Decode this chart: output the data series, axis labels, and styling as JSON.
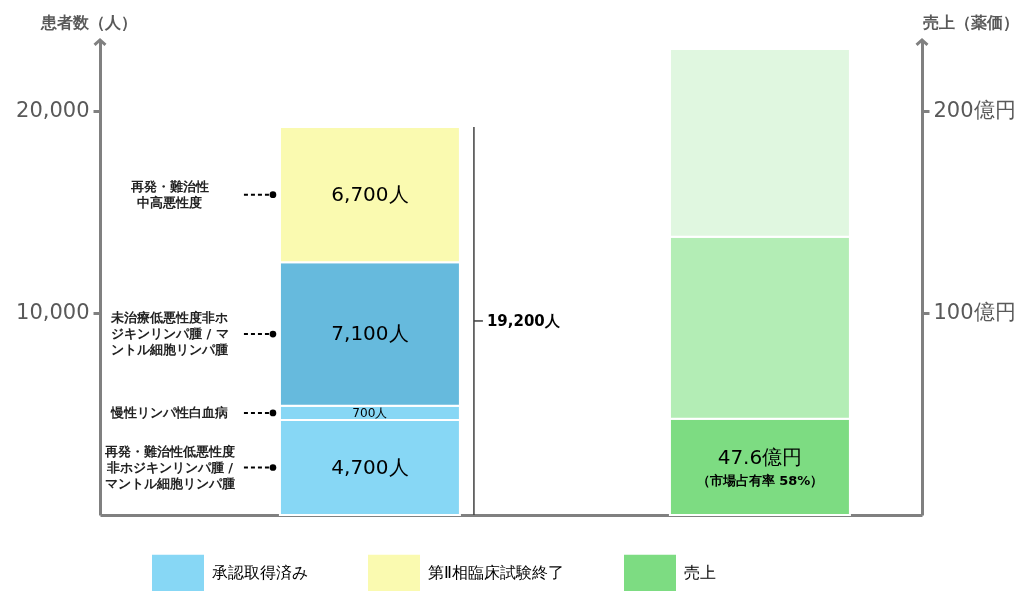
{
  "chart_data": {
    "type": "bar",
    "stacked": true,
    "categories": [
      null,
      null
    ],
    "ylabel": "患者数（人）",
    "y2label": "売上（薬価）",
    "ylim": [
      0,
      23500
    ],
    "yticks": [
      {
        "value": 10000,
        "label": "10,000"
      },
      {
        "value": 20000,
        "label": "20,000"
      }
    ],
    "y2lim": [
      0,
      235
    ],
    "y2ticks": [
      {
        "value": 100,
        "label": "100億円"
      },
      {
        "value": 200,
        "label": "200億円"
      }
    ],
    "legend": "bottom",
    "series": [
      {
        "name": "承認取得済み",
        "color": "#87d7f5",
        "values": [
          4700,
          null
        ],
        "value_labels": [
          "4,700人",
          null
        ]
      },
      {
        "color": "#87d7f5",
        "values": [
          700,
          null
        ],
        "value_labels": [
          "700人",
          null
        ]
      },
      {
        "color": "#66badd",
        "values": [
          7100,
          null
        ],
        "value_labels": [
          "7,100人",
          null
        ]
      },
      {
        "name": "第Ⅱ相臨床試験終了",
        "color": "#fafab0",
        "values": [
          6700,
          null
        ],
        "value_labels": [
          "6,700人",
          null
        ]
      },
      {
        "name": "売上",
        "color": "#7ddc82",
        "axis": "y2",
        "values": [
          null,
          47.6
        ],
        "value_labels": [
          null,
          "47.6億円"
        ]
      },
      {
        "color": "#b3edb5",
        "axis": "y2",
        "values": [
          null,
          90
        ]
      },
      {
        "color": "#e0f7e0",
        "axis": "y2",
        "values": [
          null,
          93
        ]
      }
    ],
    "totals": [
      "19,200人",
      null
    ],
    "annotations": [
      "再発・難治性低悪性度非ホジキンリンパ腫 / マントル細胞リンパ腫",
      "慢性リンパ性白血病",
      "未治療低悪性度非ホジキンリンパ腫 / マントル細胞リンパ腫",
      "再発・難治性中高悪性度",
      "（市場占有率 58%）"
    ]
  }
}
